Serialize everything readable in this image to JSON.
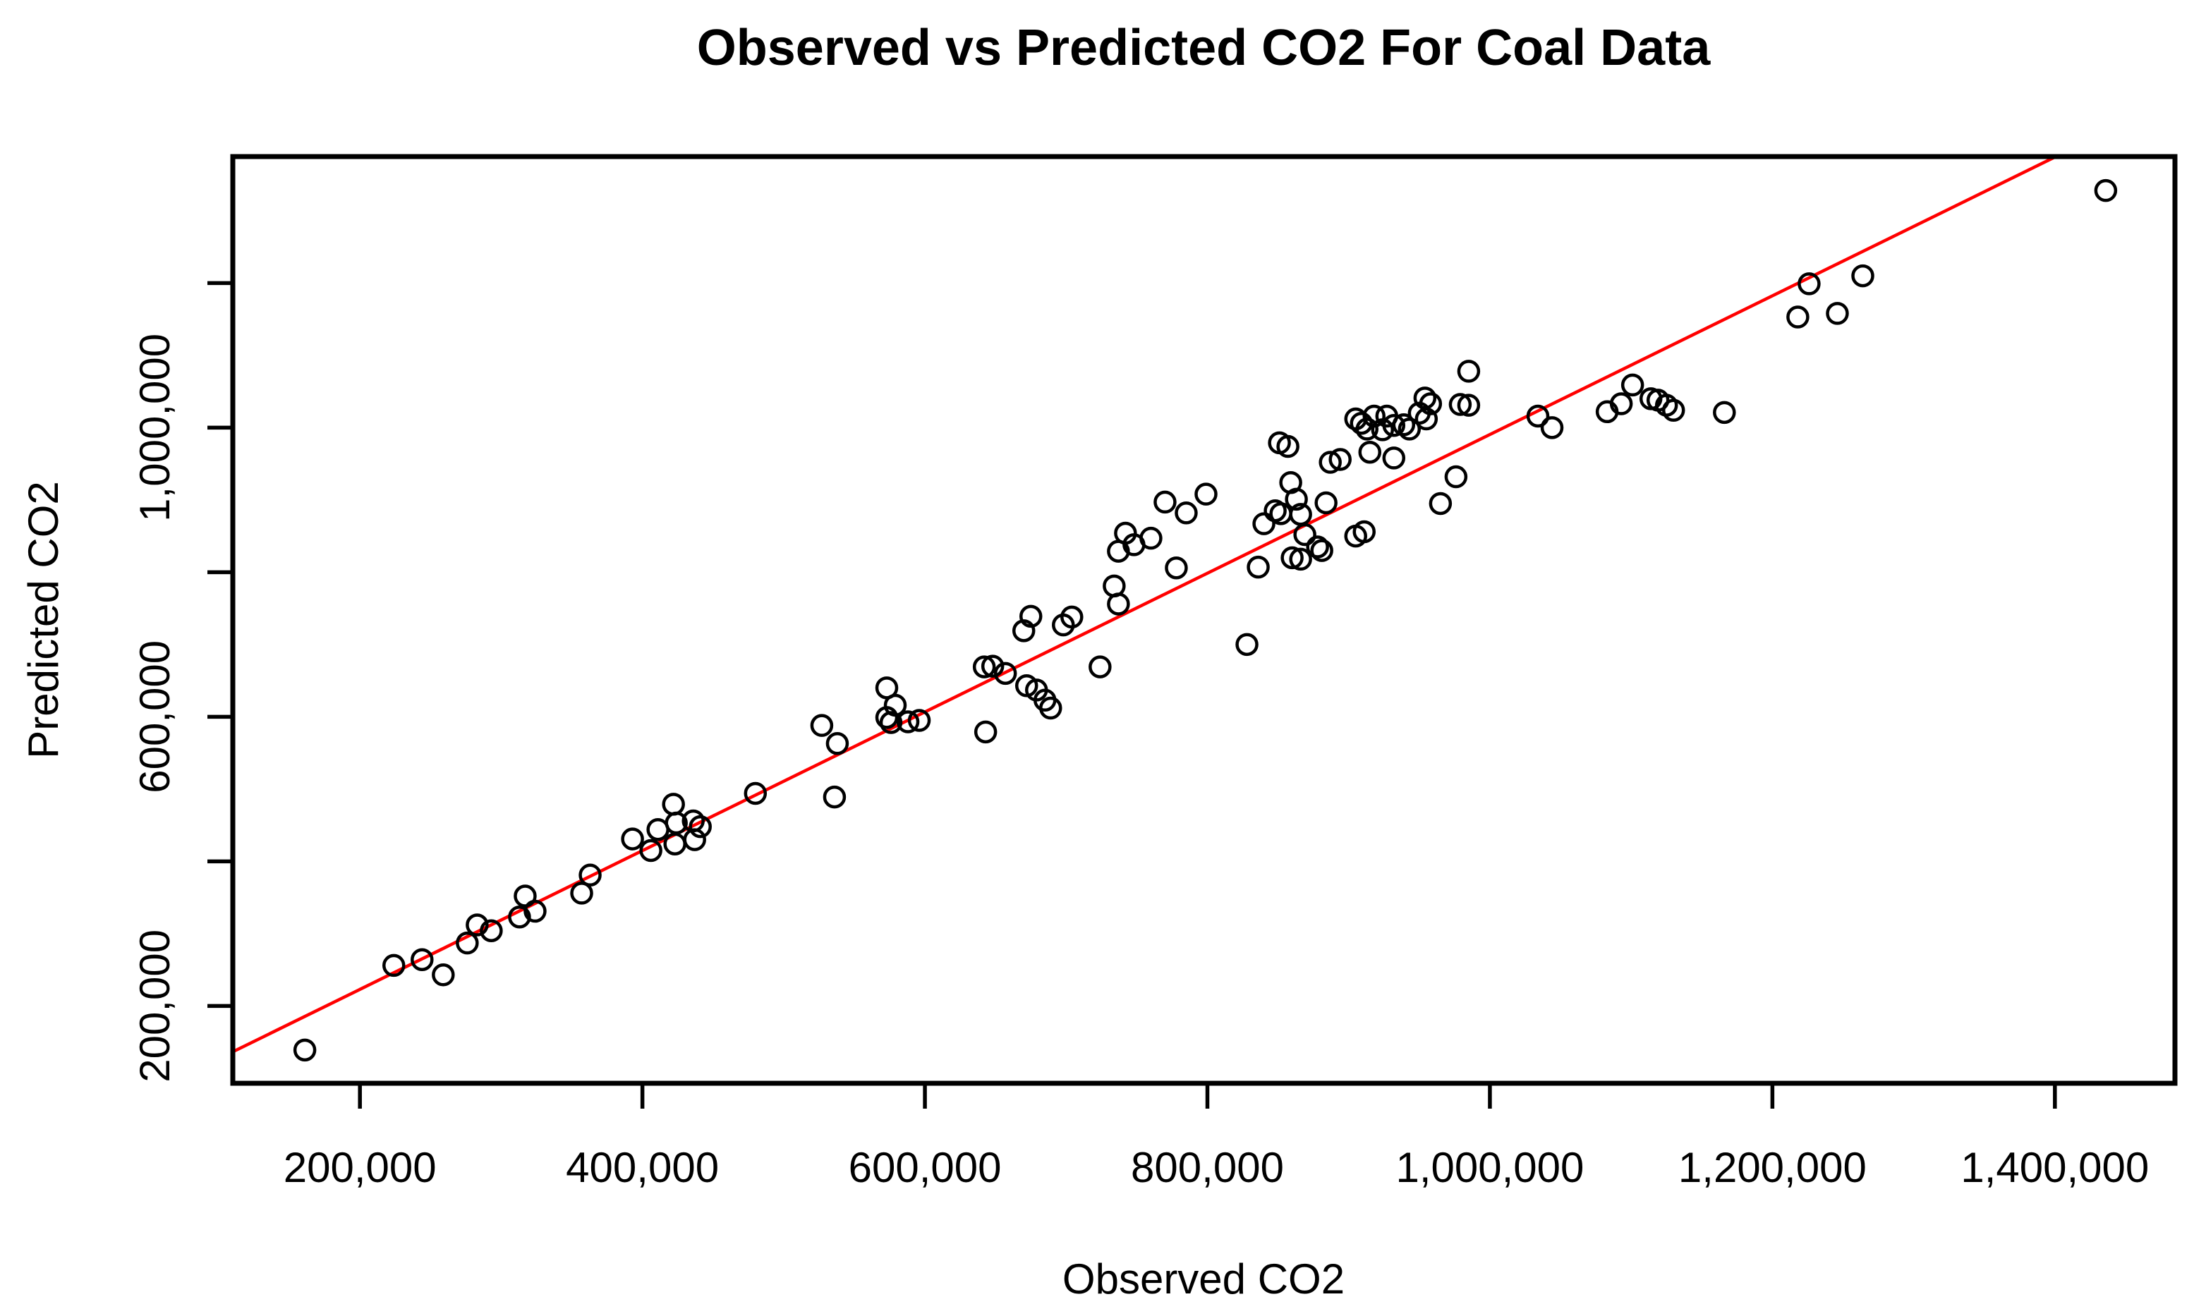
{
  "page": {
    "background": "#FFFFFF"
  },
  "chart_data": {
    "type": "scatter",
    "title": "Observed vs Predicted CO2 For Coal Data",
    "xlabel": "Observed CO2",
    "ylabel": "Predicted CO2",
    "xlim": [
      110000,
      1485000
    ],
    "ylim": [
      93000,
      1375000
    ],
    "grid": false,
    "legend_position": "none",
    "point_color": "#000000",
    "line_color": "#FF0000",
    "x_ticks": [
      {
        "value": 200000,
        "label": "200,000"
      },
      {
        "value": 400000,
        "label": "400,000"
      },
      {
        "value": 600000,
        "label": "600,000"
      },
      {
        "value": 800000,
        "label": "800,000"
      },
      {
        "value": 1000000,
        "label": "1,000,000"
      },
      {
        "value": 1200000,
        "label": "1,200,000"
      },
      {
        "value": 1400000,
        "label": "1,400,000"
      }
    ],
    "y_ticks": [
      {
        "value": 200000,
        "label": "200,000"
      },
      {
        "value": 400000,
        "label": ""
      },
      {
        "value": 600000,
        "label": "600,000"
      },
      {
        "value": 800000,
        "label": ""
      },
      {
        "value": 1000000,
        "label": "1,000,000"
      },
      {
        "value": 1200000,
        "label": ""
      }
    ],
    "fit_line": {
      "type": "abline",
      "intercept": 31000,
      "slope": 0.9595
    },
    "points": [
      [
        161000,
        139000
      ],
      [
        224000,
        256000
      ],
      [
        244000,
        264000
      ],
      [
        259000,
        243000
      ],
      [
        276000,
        287000
      ],
      [
        283000,
        312000
      ],
      [
        293000,
        304000
      ],
      [
        313000,
        323000
      ],
      [
        317000,
        352000
      ],
      [
        324000,
        331000
      ],
      [
        357000,
        356000
      ],
      [
        363000,
        381000
      ],
      [
        393000,
        431000
      ],
      [
        406000,
        415000
      ],
      [
        411000,
        444000
      ],
      [
        422000,
        479000
      ],
      [
        423000,
        424000
      ],
      [
        424000,
        453000
      ],
      [
        436000,
        456000
      ],
      [
        441000,
        448000
      ],
      [
        437000,
        430000
      ],
      [
        480000,
        494000
      ],
      [
        536000,
        489000
      ],
      [
        527000,
        588000
      ],
      [
        538000,
        563000
      ],
      [
        573000,
        640000
      ],
      [
        579000,
        616000
      ],
      [
        573000,
        599000
      ],
      [
        576000,
        592000
      ],
      [
        588000,
        593000
      ],
      [
        596000,
        595000
      ],
      [
        643000,
        579000
      ],
      [
        642000,
        669000
      ],
      [
        648000,
        670000
      ],
      [
        657000,
        660000
      ],
      [
        670000,
        719000
      ],
      [
        675000,
        739000
      ],
      [
        672000,
        643000
      ],
      [
        679000,
        637000
      ],
      [
        685000,
        623000
      ],
      [
        689000,
        612000
      ],
      [
        724000,
        669000
      ],
      [
        704000,
        738000
      ],
      [
        698000,
        727000
      ],
      [
        734000,
        781000
      ],
      [
        737000,
        756000
      ],
      [
        742000,
        854000
      ],
      [
        748000,
        838000
      ],
      [
        737000,
        829000
      ],
      [
        760000,
        847000
      ],
      [
        778000,
        806000
      ],
      [
        770000,
        897000
      ],
      [
        785000,
        882000
      ],
      [
        799000,
        908000
      ],
      [
        851000,
        979000
      ],
      [
        857000,
        974000
      ],
      [
        859000,
        924000
      ],
      [
        863000,
        901000
      ],
      [
        848000,
        885000
      ],
      [
        852000,
        881000
      ],
      [
        840000,
        867000
      ],
      [
        866000,
        880000
      ],
      [
        884000,
        896000
      ],
      [
        869000,
        852000
      ],
      [
        878000,
        835000
      ],
      [
        881000,
        830000
      ],
      [
        860000,
        820000
      ],
      [
        866000,
        818000
      ],
      [
        836000,
        807000
      ],
      [
        905000,
        850000
      ],
      [
        911000,
        856000
      ],
      [
        887000,
        952000
      ],
      [
        894000,
        956000
      ],
      [
        905000,
        1012000
      ],
      [
        909000,
        1006000
      ],
      [
        913000,
        998000
      ],
      [
        918000,
        1016000
      ],
      [
        924000,
        997000
      ],
      [
        927000,
        1016000
      ],
      [
        932000,
        1003000
      ],
      [
        939000,
        1004000
      ],
      [
        943000,
        998000
      ],
      [
        950000,
        1020000
      ],
      [
        954000,
        1041000
      ],
      [
        979000,
        1032000
      ],
      [
        915000,
        966000
      ],
      [
        932000,
        958000
      ],
      [
        965000,
        895000
      ],
      [
        976000,
        932000
      ],
      [
        828000,
        700000
      ],
      [
        985000,
        1078000
      ],
      [
        985000,
        1031000
      ],
      [
        958000,
        1033000
      ],
      [
        955000,
        1012000
      ],
      [
        1034000,
        1016000
      ],
      [
        1044000,
        1000000
      ],
      [
        1083000,
        1022000
      ],
      [
        1093000,
        1033000
      ],
      [
        1101000,
        1059000
      ],
      [
        1114000,
        1040000
      ],
      [
        1119000,
        1038000
      ],
      [
        1125000,
        1031000
      ],
      [
        1130000,
        1024000
      ],
      [
        1166000,
        1021000
      ],
      [
        1218000,
        1153000
      ],
      [
        1226000,
        1199000
      ],
      [
        1246000,
        1158000
      ],
      [
        1264000,
        1210000
      ],
      [
        1436000,
        1328000
      ]
    ]
  }
}
